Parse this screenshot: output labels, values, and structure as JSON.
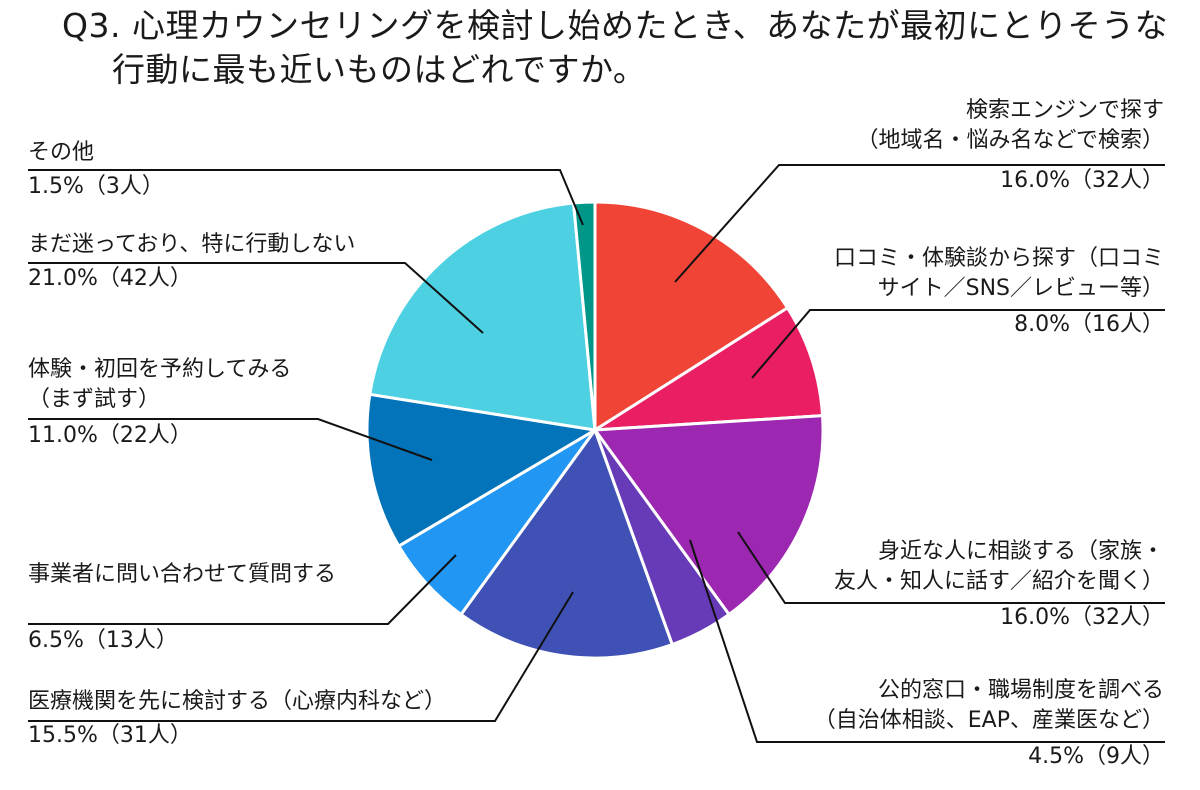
{
  "title": {
    "line1": "Q3. 心理カウンセリングを検討し始めたとき、あなたが最初にとりそうな",
    "line2": "行動に最も近いものはどれですか。"
  },
  "chart_data": {
    "type": "pie",
    "title": "Q3. 心理カウンセリングを検討し始めたとき、あなたが最初にとりそうな行動に最も近いものはどれですか。",
    "start_angle_deg": 0,
    "direction": "clockwise",
    "total_n": 200,
    "slices": [
      {
        "label": "検索エンジンで探す（地域名・悩み名などで検索）",
        "percent": 16.0,
        "count": 32,
        "color": "#f04437"
      },
      {
        "label": "口コミ・体験談から探す（口コミサイト／SNS／レビュー等）",
        "percent": 8.0,
        "count": 16,
        "color": "#e91e63"
      },
      {
        "label": "身近な人に相談する（家族・友人・知人に話す／紹介を聞く）",
        "percent": 16.0,
        "count": 32,
        "color": "#9c27b0"
      },
      {
        "label": "公的窓口・職場制度を調べる（自治体相談、EAP、産業医など）",
        "percent": 4.5,
        "count": 9,
        "color": "#673ab7"
      },
      {
        "label": "医療機関を先に検討する（心療内科など）",
        "percent": 15.5,
        "count": 31,
        "color": "#3f51b5"
      },
      {
        "label": "事業者に問い合わせて質問する",
        "percent": 6.5,
        "count": 13,
        "color": "#2196f3"
      },
      {
        "label": "体験・初回を予約してみる（まず試す）",
        "percent": 11.0,
        "count": 22,
        "color": "#0373ba"
      },
      {
        "label": "まだ迷っており、特に行動しない",
        "percent": 21.0,
        "count": 42,
        "color": "#4dd0e1"
      },
      {
        "label": "その他",
        "percent": 1.5,
        "count": 3,
        "color": "#009688"
      }
    ]
  },
  "labels": {
    "search": {
      "line1": "検索エンジンで探す",
      "line2": "（地域名・悩み名などで検索）",
      "value": "16.0%（32人）"
    },
    "reviews": {
      "line1": "口コミ・体験談から探す（口コミ",
      "line2": "サイト／SNS／レビュー等）",
      "value": "8.0%（16人）"
    },
    "people": {
      "line1": "身近な人に相談する（家族・",
      "line2": "友人・知人に話す／紹介を聞く）",
      "value": "16.0%（32人）"
    },
    "public": {
      "line1": "公的窓口・職場制度を調べる",
      "line2": "（自治体相談、EAP、産業医など）",
      "value": "4.5%（9人）"
    },
    "medical": {
      "line1": "医療機関を先に検討する（心療内科など）",
      "value": "15.5%（31人）"
    },
    "inquiry": {
      "line1": "事業者に問い合わせて質問する",
      "value": "6.5%（13人）"
    },
    "trial": {
      "line1": "体験・初回を予約してみる",
      "line2": "（まず試す）",
      "value": "11.0%（22人）"
    },
    "undecided": {
      "line1": "まだ迷っており、特に行動しない",
      "value": "21.0%（42人）"
    },
    "other": {
      "line1": "その他",
      "value": "1.5%（3人）"
    }
  }
}
